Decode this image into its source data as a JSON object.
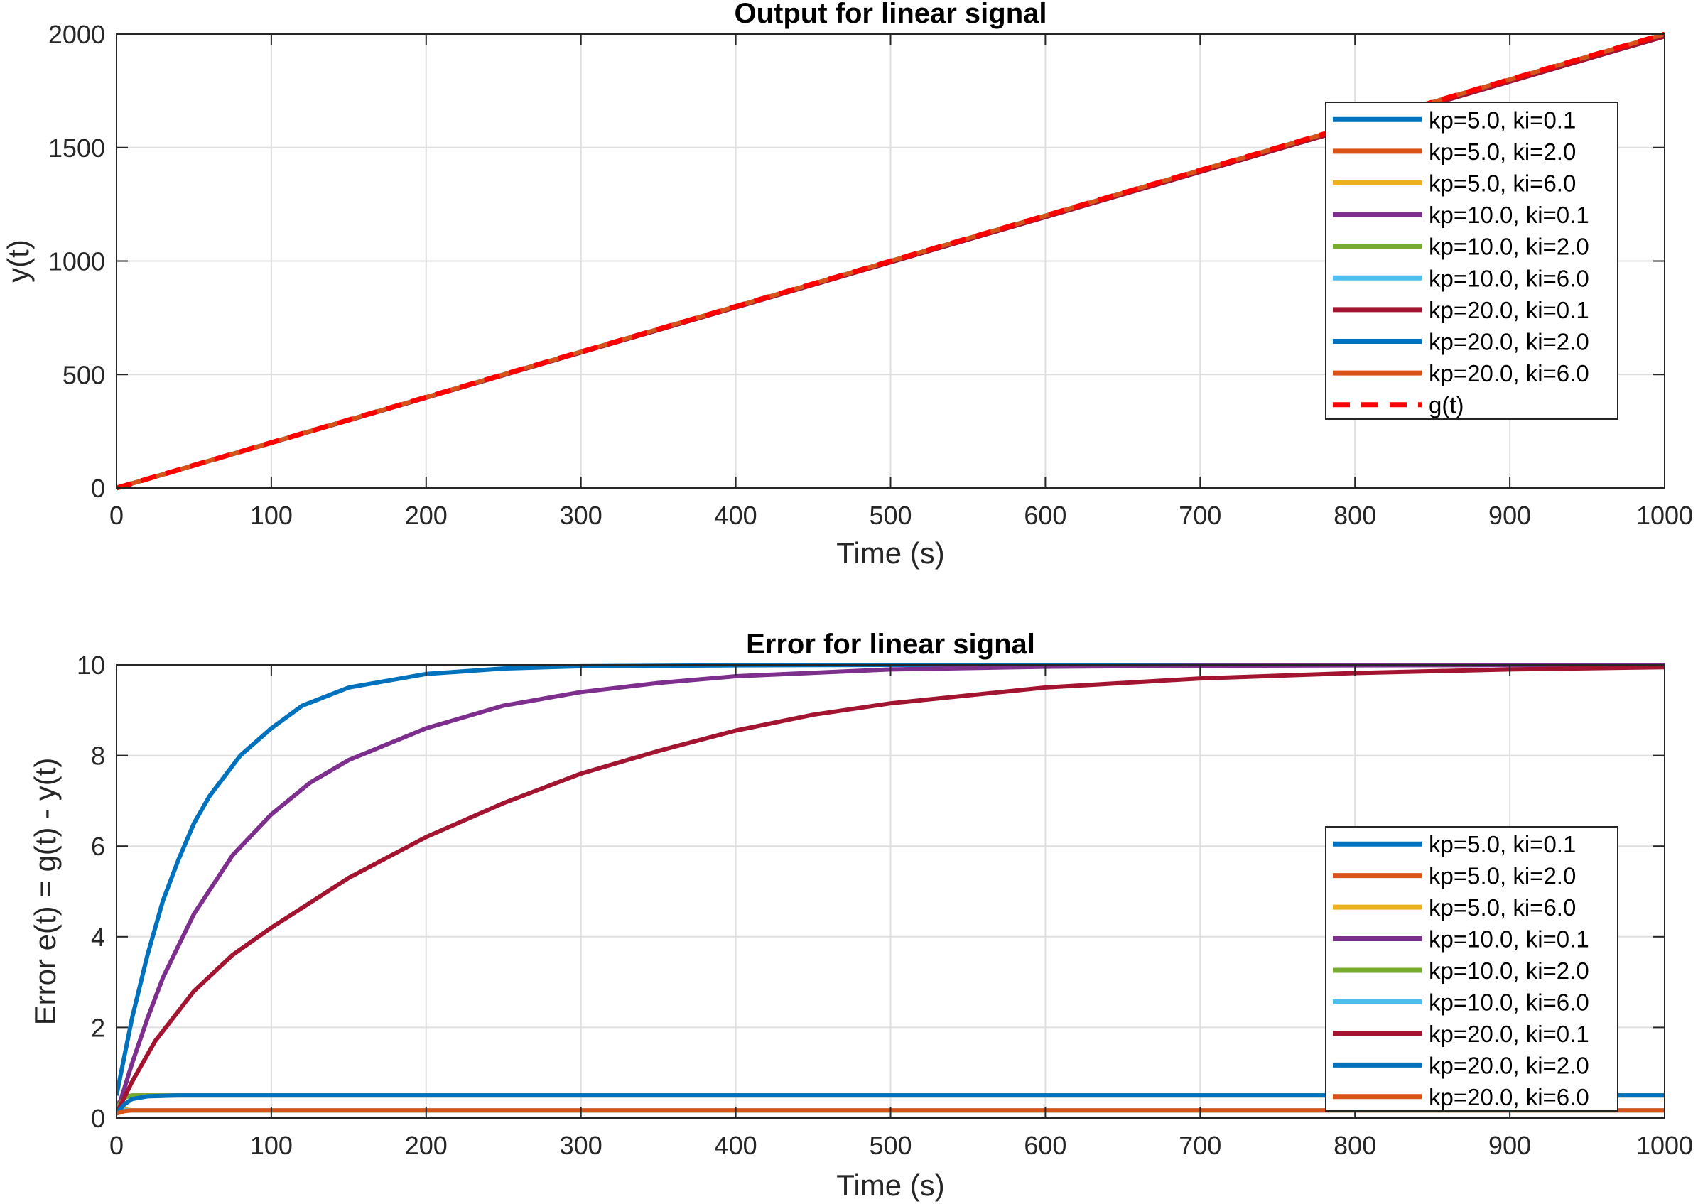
{
  "colors": {
    "blue": "#0072bd",
    "orange": "#d95319",
    "yellow": "#edb120",
    "purple": "#7e2f8e",
    "green": "#77ac30",
    "cyan": "#4dbeee",
    "maroon": "#a2142f",
    "red": "#ff0000"
  },
  "chart_data": [
    {
      "type": "line",
      "title": "Output for linear signal",
      "xlabel": "Time (s)",
      "ylabel": "y(t)",
      "xlim": [
        0,
        1000
      ],
      "ylim": [
        0,
        2000
      ],
      "xticks": [
        "0",
        "100",
        "200",
        "300",
        "400",
        "500",
        "600",
        "700",
        "800",
        "900",
        "1000"
      ],
      "yticks": [
        "0",
        "500",
        "1000",
        "1500",
        "2000"
      ],
      "grid": true,
      "legend_position": "top-right",
      "series": [
        {
          "name": "kp=5.0, ki=0.1",
          "color": "#0072bd",
          "x": [
            0,
            1000
          ],
          "y": [
            0,
            1990
          ]
        },
        {
          "name": "kp=5.0, ki=2.0",
          "color": "#d95319",
          "x": [
            0,
            1000
          ],
          "y": [
            0,
            1999.5
          ]
        },
        {
          "name": "kp=5.0, ki=6.0",
          "color": "#edb120",
          "x": [
            0,
            1000
          ],
          "y": [
            0,
            1999.8
          ]
        },
        {
          "name": "kp=10.0, ki=0.1",
          "color": "#7e2f8e",
          "x": [
            0,
            1000
          ],
          "y": [
            0,
            1990
          ]
        },
        {
          "name": "kp=10.0, ki=2.0",
          "color": "#77ac30",
          "x": [
            0,
            1000
          ],
          "y": [
            0,
            1999.5
          ]
        },
        {
          "name": "kp=10.0, ki=6.0",
          "color": "#4dbeee",
          "x": [
            0,
            1000
          ],
          "y": [
            0,
            1999.8
          ]
        },
        {
          "name": "kp=20.0, ki=0.1",
          "color": "#a2142f",
          "x": [
            0,
            1000
          ],
          "y": [
            0,
            1990
          ]
        },
        {
          "name": "kp=20.0, ki=2.0",
          "color": "#0072bd",
          "x": [
            0,
            1000
          ],
          "y": [
            0,
            1999.5
          ]
        },
        {
          "name": "kp=20.0, ki=6.0",
          "color": "#d95319",
          "x": [
            0,
            1000
          ],
          "y": [
            0,
            1999.8
          ]
        },
        {
          "name": "g(t)",
          "color": "#ff0000",
          "dashed": true,
          "x": [
            0,
            1000
          ],
          "y": [
            0,
            2000
          ]
        }
      ]
    },
    {
      "type": "line",
      "title": "Error for linear signal",
      "xlabel": "Time (s)",
      "ylabel": "Error e(t) = g(t) - y(t)",
      "xlim": [
        0,
        1000
      ],
      "ylim": [
        0,
        10
      ],
      "xticks": [
        "0",
        "100",
        "200",
        "300",
        "400",
        "500",
        "600",
        "700",
        "800",
        "900",
        "1000"
      ],
      "yticks": [
        "0",
        "2",
        "4",
        "6",
        "8",
        "10"
      ],
      "grid": true,
      "legend_position": "bottom-right",
      "series": [
        {
          "name": "kp=5.0, ki=0.1",
          "color": "#0072bd",
          "x": [
            0,
            10,
            20,
            30,
            40,
            50,
            60,
            80,
            100,
            120,
            150,
            200,
            250,
            300,
            400,
            500,
            700,
            1000
          ],
          "y": [
            0.5,
            2.2,
            3.6,
            4.8,
            5.7,
            6.5,
            7.1,
            8.0,
            8.6,
            9.1,
            9.5,
            9.8,
            9.92,
            9.97,
            9.99,
            10.0,
            10.0,
            10.0
          ]
        },
        {
          "name": "kp=5.0, ki=2.0",
          "color": "#d95319",
          "x": [
            0,
            5,
            10,
            20,
            1000
          ],
          "y": [
            0.3,
            0.45,
            0.5,
            0.5,
            0.5
          ]
        },
        {
          "name": "kp=5.0, ki=6.0",
          "color": "#edb120",
          "x": [
            0,
            5,
            10,
            20,
            1000
          ],
          "y": [
            0.2,
            0.2,
            0.17,
            0.17,
            0.17
          ]
        },
        {
          "name": "kp=10.0, ki=0.1",
          "color": "#7e2f8e",
          "x": [
            0,
            10,
            20,
            30,
            50,
            75,
            100,
            125,
            150,
            200,
            250,
            300,
            350,
            400,
            500,
            600,
            700,
            800,
            1000
          ],
          "y": [
            0.1,
            1.2,
            2.2,
            3.1,
            4.5,
            5.8,
            6.7,
            7.4,
            7.9,
            8.6,
            9.1,
            9.4,
            9.6,
            9.75,
            9.9,
            9.96,
            9.98,
            9.99,
            10.0
          ]
        },
        {
          "name": "kp=10.0, ki=2.0",
          "color": "#77ac30",
          "x": [
            0,
            5,
            10,
            20,
            1000
          ],
          "y": [
            0.2,
            0.45,
            0.5,
            0.5,
            0.5
          ]
        },
        {
          "name": "kp=10.0, ki=6.0",
          "color": "#4dbeee",
          "x": [
            0,
            5,
            10,
            20,
            1000
          ],
          "y": [
            0.1,
            0.17,
            0.17,
            0.17,
            0.17
          ]
        },
        {
          "name": "kp=20.0, ki=0.1",
          "color": "#a2142f",
          "x": [
            0,
            10,
            25,
            50,
            75,
            100,
            150,
            200,
            250,
            300,
            350,
            400,
            450,
            500,
            600,
            700,
            800,
            900,
            1000
          ],
          "y": [
            0.1,
            0.8,
            1.7,
            2.8,
            3.6,
            4.2,
            5.3,
            6.2,
            6.95,
            7.6,
            8.1,
            8.55,
            8.9,
            9.15,
            9.5,
            9.7,
            9.82,
            9.9,
            9.95
          ]
        },
        {
          "name": "kp=20.0, ki=2.0",
          "color": "#0072bd",
          "x": [
            0,
            5,
            10,
            20,
            40,
            1000
          ],
          "y": [
            0.1,
            0.3,
            0.42,
            0.48,
            0.5,
            0.5
          ]
        },
        {
          "name": "kp=20.0, ki=6.0",
          "color": "#d95319",
          "x": [
            0,
            5,
            10,
            20,
            1000
          ],
          "y": [
            0.1,
            0.15,
            0.17,
            0.17,
            0.17
          ]
        }
      ]
    }
  ]
}
